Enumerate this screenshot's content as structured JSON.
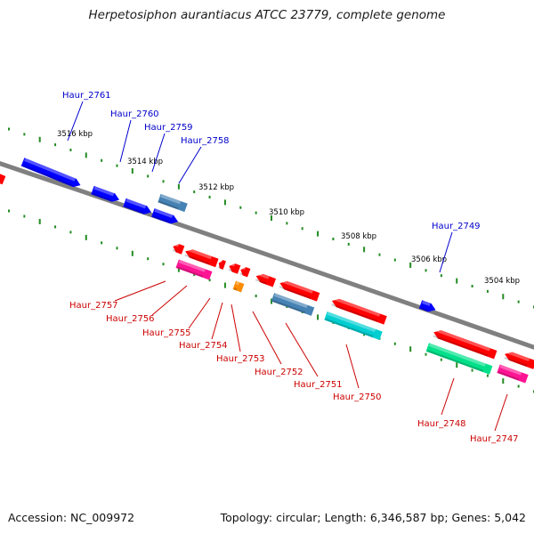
{
  "title": "Herpetosiphon aurantiacus ATCC 23779, complete genome",
  "footer": {
    "accession": "Accession: NC_009972",
    "summary": "Topology: circular; Length: 6,346,587 bp; Genes: 5,042"
  },
  "scale_labels": [
    "3516 kbp",
    "3514 kbp",
    "3512 kbp",
    "3510 kbp",
    "3508 kbp",
    "3506 kbp",
    "3504 kbp"
  ],
  "forward_genes": [
    "Haur_2761",
    "Haur_2760",
    "Haur_2759",
    "Haur_2758",
    "Haur_2749"
  ],
  "reverse_genes": [
    "Haur_2757",
    "Haur_2756",
    "Haur_2755",
    "Haur_2754",
    "Haur_2753",
    "Haur_2752",
    "Haur_2751",
    "Haur_2750",
    "Haur_2748",
    "Haur_2747"
  ],
  "colors": {
    "forward_label": "#0000cc",
    "reverse_label": "#cc0000",
    "backbone": "#808080",
    "tick": "#228b22",
    "cds_blue": "#0000ff",
    "cds_steelblue": "#4682b4",
    "cds_red": "#ff0000",
    "cds_pink": "#ff1493",
    "cds_cyan": "#00ced1",
    "cds_springgreen": "#00e08a",
    "cds_orange": "#ff8c00"
  }
}
